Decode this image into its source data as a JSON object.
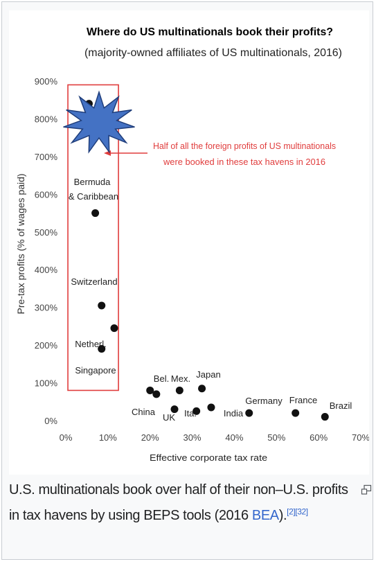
{
  "chart_data": {
    "type": "scatter",
    "title": "Where do US multinationals book their profits?",
    "subtitle": "(majority-owned affiliates of US multinationals, 2016)",
    "xlabel": "Effective corporate tax rate",
    "ylabel": "Pre-tax profits (% of wages paid)",
    "xlim": [
      0,
      70
    ],
    "ylim": [
      0,
      900
    ],
    "x_ticks": [
      "0%",
      "10%",
      "20%",
      "30%",
      "40%",
      "50%",
      "60%",
      "70%"
    ],
    "y_ticks": [
      "0%",
      "100%",
      "200%",
      "300%",
      "400%",
      "500%",
      "600%",
      "700%",
      "800%",
      "900%"
    ],
    "grid": false,
    "points": [
      {
        "label": "",
        "x": 5.5,
        "y": 840
      },
      {
        "label": "Bermuda & Caribbean",
        "x": 7,
        "y": 550
      },
      {
        "label": "Switzerland",
        "x": 8.5,
        "y": 305
      },
      {
        "label": "Netherl.",
        "x": 11.5,
        "y": 245
      },
      {
        "label": "Singapore",
        "x": 8.5,
        "y": 190
      },
      {
        "label": "China",
        "x": 20,
        "y": 80
      },
      {
        "label": "Bel.",
        "x": 21.5,
        "y": 70
      },
      {
        "label": "UK",
        "x": 25.8,
        "y": 30
      },
      {
        "label": "Mex.",
        "x": 27,
        "y": 80
      },
      {
        "label": "Ita.",
        "x": 31,
        "y": 25
      },
      {
        "label": "Japan",
        "x": 32.3,
        "y": 85
      },
      {
        "label": "India",
        "x": 34.5,
        "y": 35
      },
      {
        "label": "Germany",
        "x": 43.5,
        "y": 20
      },
      {
        "label": "France",
        "x": 54.5,
        "y": 20
      },
      {
        "label": "Brazil",
        "x": 61.5,
        "y": 10
      }
    ],
    "annotations": [
      "Half of all the foreign profits of US multinationals",
      "were booked in these tax havens in 2016"
    ],
    "highlight_box": {
      "x_range": [
        0.5,
        12.5
      ],
      "y_range": [
        80,
        890
      ]
    },
    "colors": {
      "points": "#111111",
      "highlight": "#e03c3c",
      "star_fill": "#4472c4",
      "star_stroke": "#1f3d7a"
    }
  },
  "caption": {
    "text": "U.S. multinationals book over half of their non–U.S. profits in tax havens by using BEPS tools (2016 ",
    "link": "BEA",
    "tail": ").",
    "refs": "[2][32]"
  },
  "icons": {
    "enlarge": "magnify-clip-icon"
  }
}
